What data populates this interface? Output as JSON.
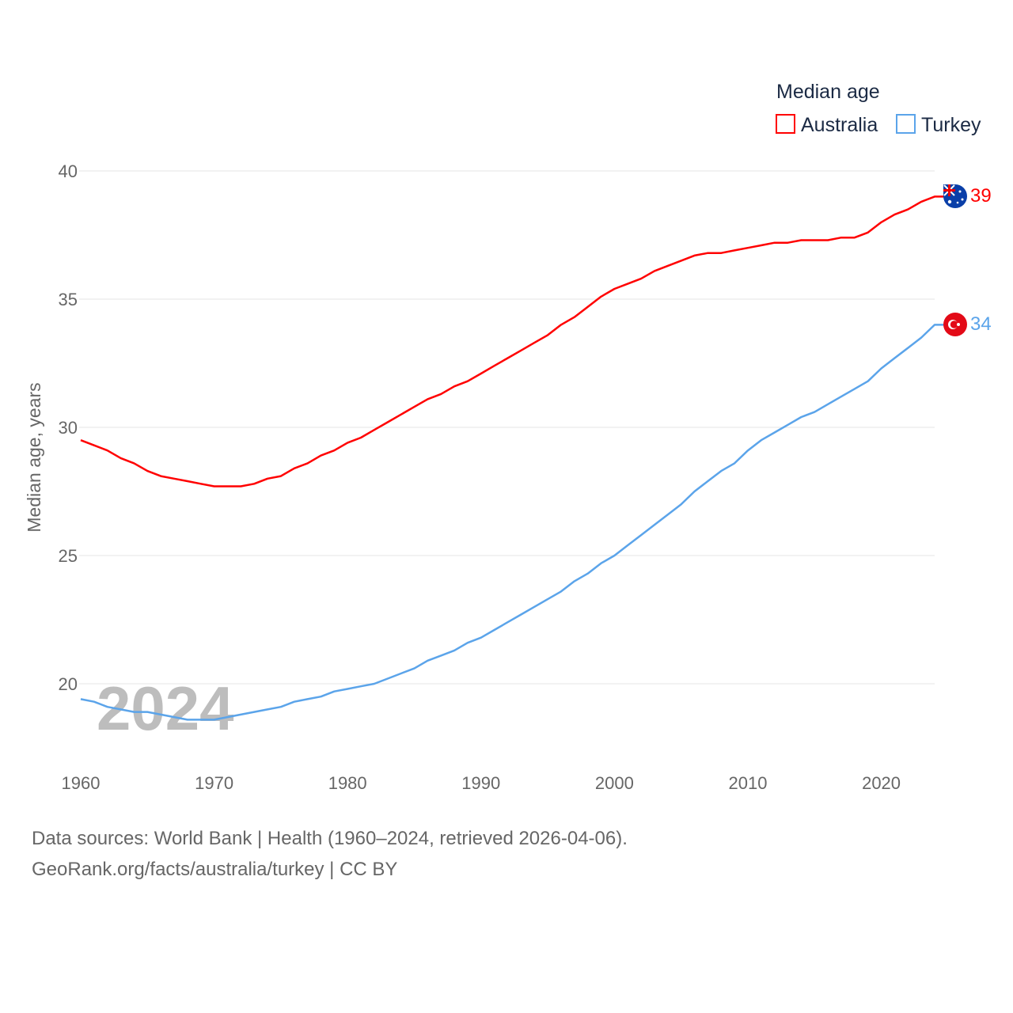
{
  "chart_data": {
    "type": "line",
    "title": "Median age",
    "ylabel": "Median age, years",
    "xlabel": "",
    "xlim": [
      1960,
      2024
    ],
    "ylim": [
      17.5,
      40
    ],
    "grid": true,
    "legend_position": "top-right",
    "year_watermark": "2024",
    "x_ticks": [
      "1960",
      "1970",
      "1980",
      "1990",
      "2000",
      "2010",
      "2020"
    ],
    "y_ticks": [
      "20",
      "25",
      "30",
      "35",
      "40"
    ],
    "x": [
      1960,
      1961,
      1962,
      1963,
      1964,
      1965,
      1966,
      1967,
      1968,
      1969,
      1970,
      1971,
      1972,
      1973,
      1974,
      1975,
      1976,
      1977,
      1978,
      1979,
      1980,
      1981,
      1982,
      1983,
      1984,
      1985,
      1986,
      1987,
      1988,
      1989,
      1990,
      1991,
      1992,
      1993,
      1994,
      1995,
      1996,
      1997,
      1998,
      1999,
      2000,
      2001,
      2002,
      2003,
      2004,
      2005,
      2006,
      2007,
      2008,
      2009,
      2010,
      2011,
      2012,
      2013,
      2014,
      2015,
      2016,
      2017,
      2018,
      2019,
      2020,
      2021,
      2022,
      2023,
      2024
    ],
    "series": [
      {
        "name": "Australia",
        "color": "#ff0000",
        "end_label": "39",
        "values": [
          29.5,
          29.3,
          29.1,
          28.8,
          28.6,
          28.3,
          28.1,
          28.0,
          27.9,
          27.8,
          27.7,
          27.7,
          27.7,
          27.8,
          28.0,
          28.1,
          28.4,
          28.6,
          28.9,
          29.1,
          29.4,
          29.6,
          29.9,
          30.2,
          30.5,
          30.8,
          31.1,
          31.3,
          31.6,
          31.8,
          32.1,
          32.4,
          32.7,
          33.0,
          33.3,
          33.6,
          34.0,
          34.3,
          34.7,
          35.1,
          35.4,
          35.6,
          35.8,
          36.1,
          36.3,
          36.5,
          36.7,
          36.8,
          36.8,
          36.9,
          37.0,
          37.1,
          37.2,
          37.2,
          37.3,
          37.3,
          37.3,
          37.4,
          37.4,
          37.6,
          38.0,
          38.3,
          38.5,
          38.8,
          39.0
        ]
      },
      {
        "name": "Turkey",
        "color": "#5ba4ea",
        "end_label": "34",
        "values": [
          19.4,
          19.3,
          19.1,
          19.0,
          18.9,
          18.9,
          18.8,
          18.7,
          18.6,
          18.6,
          18.6,
          18.7,
          18.8,
          18.9,
          19.0,
          19.1,
          19.3,
          19.4,
          19.5,
          19.7,
          19.8,
          19.9,
          20.0,
          20.2,
          20.4,
          20.6,
          20.9,
          21.1,
          21.3,
          21.6,
          21.8,
          22.1,
          22.4,
          22.7,
          23.0,
          23.3,
          23.6,
          24.0,
          24.3,
          24.7,
          25.0,
          25.4,
          25.8,
          26.2,
          26.6,
          27.0,
          27.5,
          27.9,
          28.3,
          28.6,
          29.1,
          29.5,
          29.8,
          30.1,
          30.4,
          30.6,
          30.9,
          31.2,
          31.5,
          31.8,
          32.3,
          32.7,
          33.1,
          33.5,
          34.0
        ]
      }
    ]
  },
  "footer": {
    "line1": "Data sources: World Bank | Health (1960–2024, retrieved 2026-04-06).",
    "line2": "GeoRank.org/facts/australia/turkey | CC BY"
  }
}
